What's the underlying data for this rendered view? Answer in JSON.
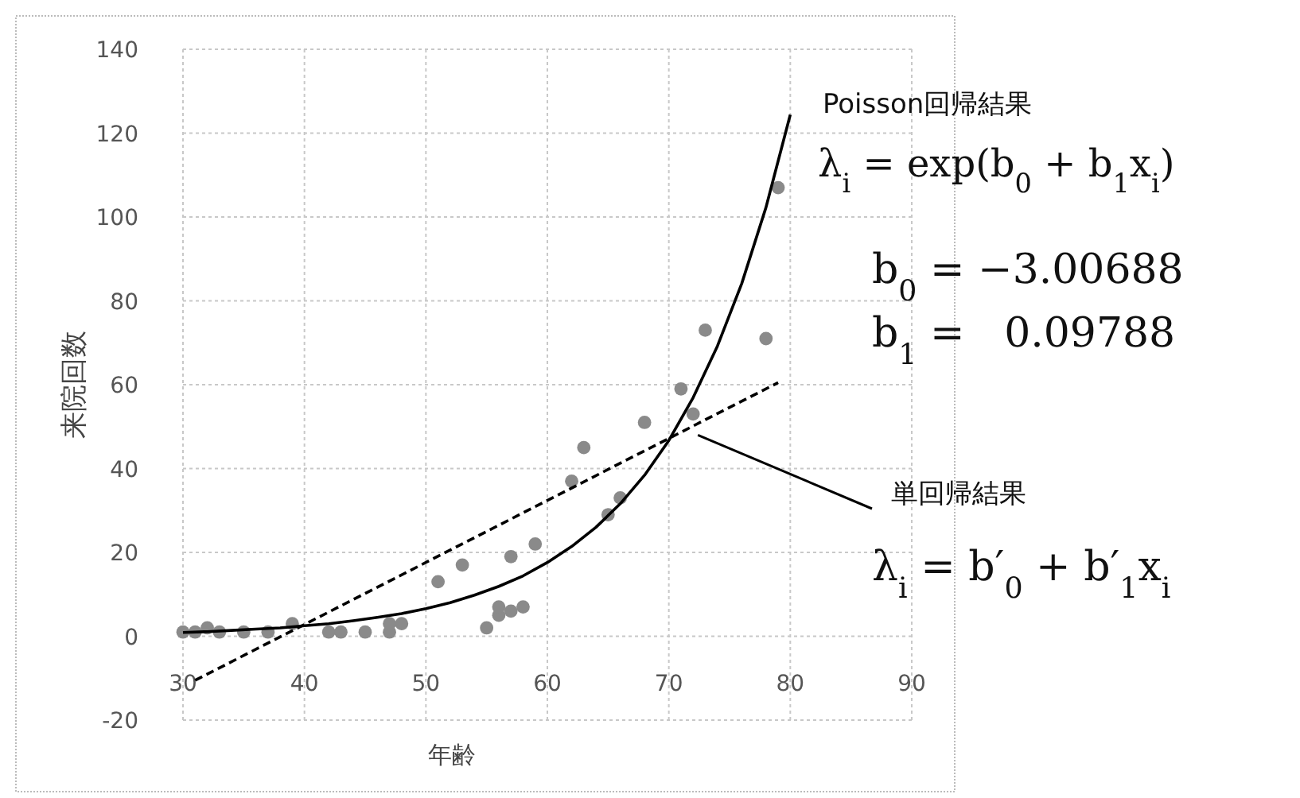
{
  "chart_data": {
    "type": "scatter",
    "xlabel": "年齢",
    "ylabel": "来院回数",
    "xlim": [
      30,
      90
    ],
    "ylim": [
      -20,
      140
    ],
    "xticks": [
      30,
      40,
      50,
      60,
      70,
      80,
      90
    ],
    "yticks": [
      -20,
      0,
      20,
      40,
      60,
      80,
      100,
      120,
      140
    ],
    "grid": true,
    "series": [
      {
        "color": "#8a8a8a",
        "marker": "circle",
        "x": [
          30,
          31,
          32,
          33,
          35,
          37,
          39,
          42,
          43,
          45,
          47,
          47,
          48,
          51,
          53,
          55,
          56,
          56,
          57,
          58,
          57,
          59,
          62,
          63,
          65,
          66,
          68,
          71,
          72,
          73,
          78,
          79
        ],
        "values": [
          1,
          1,
          2,
          1,
          1,
          1,
          3,
          1,
          1,
          1,
          1,
          3,
          3,
          13,
          17,
          2,
          5,
          7,
          6,
          7,
          19,
          22,
          37,
          45,
          29,
          33,
          51,
          59,
          53,
          73,
          71,
          107
        ]
      },
      {
        "type": "line",
        "color": "#000000",
        "line_style": "solid",
        "x": [
          30,
          32,
          34,
          36,
          38,
          40,
          42,
          44,
          46,
          48,
          50,
          52,
          54,
          56,
          58,
          60,
          62,
          64,
          66,
          68,
          70,
          72,
          74,
          76,
          78,
          80
        ],
        "values": [
          0.9,
          1.1,
          1.4,
          1.7,
          2.0,
          2.5,
          3.0,
          3.7,
          4.5,
          5.4,
          6.6,
          8.0,
          9.8,
          11.9,
          14.4,
          17.6,
          21.4,
          26.0,
          31.6,
          38.4,
          46.7,
          56.9,
          69.2,
          84.1,
          102.3,
          124.4
        ]
      },
      {
        "type": "line",
        "color": "#000000",
        "line_style": "dashed",
        "x": [
          31,
          79
        ],
        "values": [
          -10.5,
          60.5
        ]
      }
    ],
    "annotations": [
      "Poisson回帰結果",
      "λ$_{i}$ = exp(b$_{0}$ + b$_{1}$x$_{i}$)",
      "b$_{0}$ = −3.00688",
      "b$_{1}$ =   0.09788",
      {
        "text": "単回帰結果",
        "x": 72,
        "y": 48
      },
      "λ$_{i}$ = b′$_{0}$ + b′$_{1}$x$_{i}$"
    ]
  }
}
